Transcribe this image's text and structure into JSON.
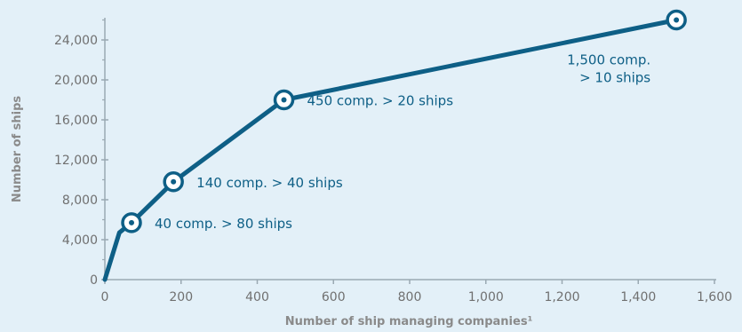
{
  "chart_data": {
    "type": "line",
    "xlabel": "Number of  ship managing companies¹",
    "ylabel": "Number of  ships",
    "xlim": [
      0,
      1600
    ],
    "ylim": [
      0,
      24000
    ],
    "x_ticks": [
      "0",
      "200",
      "400",
      "600",
      "800",
      "1,000",
      "1,200",
      "1,400",
      "1,600"
    ],
    "y_ticks": [
      "0",
      "4,000",
      "8,000",
      "12,000",
      "16,000",
      "20,000",
      "24,000"
    ],
    "grid": false,
    "legend": "none",
    "series": [
      {
        "x": [
          0,
          38,
          70,
          180,
          470,
          1500
        ],
        "y": [
          0,
          4700,
          5700,
          9800,
          18000,
          26000
        ]
      }
    ],
    "markers": [
      {
        "x": 70,
        "y": 5700,
        "label": "40 comp. > 80 ships"
      },
      {
        "x": 180,
        "y": 9800,
        "label": "140 comp. > 40 ships"
      },
      {
        "x": 470,
        "y": 18000,
        "label": "450 comp. > 20 ships"
      },
      {
        "x": 1500,
        "y": 26000,
        "label_lines": [
          "1,500 comp.",
          "> 10 ships"
        ]
      }
    ],
    "colors": {
      "line": "#0e5f86",
      "axis": "#9aa9b2",
      "background": "#e3f0f8"
    }
  }
}
